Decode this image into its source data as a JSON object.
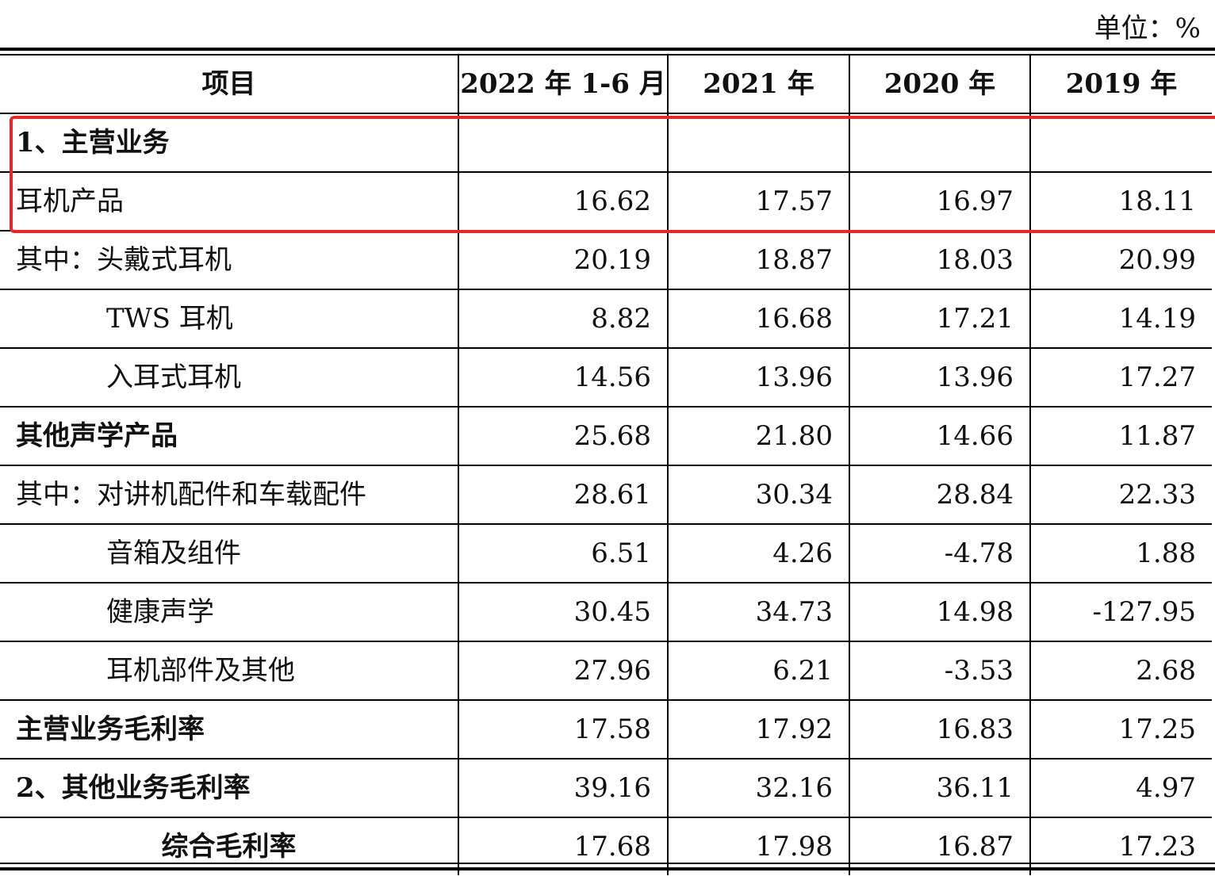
{
  "unit_label": "单位：%",
  "header": {
    "item": "项目",
    "col1": "2022 年 1-6 月",
    "col2": "2021 年",
    "col3": "2020 年",
    "col4": "2019 年"
  },
  "rows": [
    {
      "label": "1、主营业务",
      "v1": "",
      "v2": "",
      "v3": "",
      "v4": ""
    },
    {
      "label": "耳机产品",
      "v1": "16.62",
      "v2": "17.57",
      "v3": "16.97",
      "v4": "18.11"
    },
    {
      "label": "其中：头戴式耳机",
      "v1": "20.19",
      "v2": "18.87",
      "v3": "18.03",
      "v4": "20.99"
    },
    {
      "label": "TWS 耳机",
      "v1": "8.82",
      "v2": "16.68",
      "v3": "17.21",
      "v4": "14.19"
    },
    {
      "label": "入耳式耳机",
      "v1": "14.56",
      "v2": "13.96",
      "v3": "13.96",
      "v4": "17.27"
    },
    {
      "label": "其他声学产品",
      "v1": "25.68",
      "v2": "21.80",
      "v3": "14.66",
      "v4": "11.87"
    },
    {
      "label": "其中：对讲机配件和车载配件",
      "v1": "28.61",
      "v2": "30.34",
      "v3": "28.84",
      "v4": "22.33"
    },
    {
      "label": "音箱及组件",
      "v1": "6.51",
      "v2": "4.26",
      "v3": "-4.78",
      "v4": "1.88"
    },
    {
      "label": "健康声学",
      "v1": "30.45",
      "v2": "34.73",
      "v3": "14.98",
      "v4": "-127.95"
    },
    {
      "label": "耳机部件及其他",
      "v1": "27.96",
      "v2": "6.21",
      "v3": "-3.53",
      "v4": "2.68"
    },
    {
      "label": "主营业务毛利率",
      "v1": "17.58",
      "v2": "17.92",
      "v3": "16.83",
      "v4": "17.25"
    },
    {
      "label": "2、其他业务毛利率",
      "v1": "39.16",
      "v2": "32.16",
      "v3": "36.11",
      "v4": "4.97"
    },
    {
      "label": "综合毛利率",
      "v1": "17.68",
      "v2": "17.98",
      "v3": "16.87",
      "v4": "17.23"
    }
  ],
  "highlight_color": "#e8262d"
}
